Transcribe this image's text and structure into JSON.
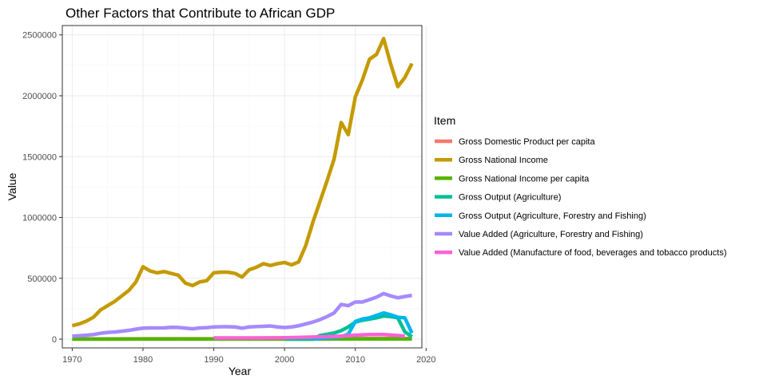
{
  "chart_data": {
    "type": "line",
    "title": "Other Factors that Contribute to African GDP",
    "xlabel": "Year",
    "ylabel": "Value",
    "xlim": [
      1968.6,
      2019.4
    ],
    "ylim": [
      -72000,
      2577000
    ],
    "x_ticks": [
      1970,
      1980,
      1990,
      2000,
      2010,
      2020
    ],
    "y_ticks": [
      0,
      500000,
      1000000,
      1500000,
      2000000,
      2500000
    ],
    "x_tick_labels": [
      "1970",
      "1980",
      "1990",
      "2000",
      "2010",
      "2020"
    ],
    "y_tick_labels": [
      "0",
      "500000",
      "1000000",
      "1500000",
      "2000000",
      "2500000"
    ],
    "grid": true,
    "legend": {
      "title": "Item",
      "position": "right",
      "entries": [
        "Gross Domestic Product per capita",
        "Gross National Income",
        "Gross National Income per capita",
        "Gross Output (Agriculture)",
        "Gross Output (Agriculture, Forestry and Fishing)",
        "Value Added (Agriculture, Forestry and Fishing)",
        "Value Added (Manufacture of food, beverages and tobacco products)"
      ]
    },
    "series": [
      {
        "name": "Gross Domestic Product per capita",
        "color": "#F8766D",
        "x": [
          1970,
          1975,
          1980,
          1985,
          1990,
          1995,
          2000,
          2005,
          2010,
          2015,
          2018
        ],
        "y": [
          1500,
          1800,
          2500,
          2200,
          2400,
          2300,
          2600,
          3200,
          4500,
          4800,
          4600
        ]
      },
      {
        "name": "Gross National Income",
        "color": "#C49A00",
        "x": [
          1970,
          1971,
          1972,
          1973,
          1974,
          1975,
          1976,
          1977,
          1978,
          1979,
          1980,
          1981,
          1982,
          1983,
          1984,
          1985,
          1986,
          1987,
          1988,
          1989,
          1990,
          1991,
          1992,
          1993,
          1994,
          1995,
          1996,
          1997,
          1998,
          1999,
          2000,
          2001,
          2002,
          2003,
          2004,
          2005,
          2006,
          2007,
          2008,
          2009,
          2010,
          2011,
          2012,
          2013,
          2014,
          2015,
          2016,
          2017,
          2018
        ],
        "y": [
          110000,
          125000,
          148000,
          180000,
          240000,
          275000,
          310000,
          355000,
          400000,
          470000,
          595000,
          560000,
          545000,
          555000,
          540000,
          525000,
          460000,
          440000,
          470000,
          480000,
          545000,
          550000,
          550000,
          540000,
          510000,
          570000,
          590000,
          620000,
          605000,
          620000,
          630000,
          610000,
          635000,
          770000,
          960000,
          1130000,
          1300000,
          1480000,
          1780000,
          1680000,
          1990000,
          2130000,
          2300000,
          2340000,
          2470000,
          2260000,
          2075000,
          2150000,
          2265000
        ]
      },
      {
        "name": "Gross National Income per capita",
        "color": "#53B400",
        "x": [
          1970,
          1975,
          1980,
          1985,
          1990,
          1995,
          2000,
          2005,
          2010,
          2015,
          2018
        ],
        "y": [
          300,
          450,
          800,
          700,
          750,
          700,
          700,
          1000,
          1700,
          1900,
          1800
        ]
      },
      {
        "name": "Gross Output (Agriculture)",
        "color": "#00C094",
        "x": [
          2000,
          2004,
          2005,
          2006,
          2007,
          2008,
          2009,
          2010,
          2011,
          2012,
          2013,
          2014,
          2015,
          2016,
          2017,
          2018
        ],
        "y": [
          0,
          0,
          30000,
          40000,
          50000,
          70000,
          100000,
          140000,
          155000,
          165000,
          175000,
          190000,
          185000,
          175000,
          60000,
          20000
        ]
      },
      {
        "name": "Gross Output (Agriculture, Forestry and Fishing)",
        "color": "#00B6EB",
        "x": [
          2004,
          2005,
          2006,
          2007,
          2008,
          2009,
          2010,
          2011,
          2012,
          2013,
          2014,
          2015,
          2016,
          2017,
          2018
        ],
        "y": [
          0,
          5000,
          10000,
          15000,
          20000,
          40000,
          145000,
          165000,
          175000,
          195000,
          215000,
          200000,
          180000,
          175000,
          50000
        ]
      },
      {
        "name": "Value Added (Agriculture, Forestry and Fishing)",
        "color": "#A58AFF",
        "x": [
          1970,
          1971,
          1972,
          1973,
          1974,
          1975,
          1976,
          1977,
          1978,
          1979,
          1980,
          1981,
          1982,
          1983,
          1984,
          1985,
          1986,
          1987,
          1988,
          1989,
          1990,
          1991,
          1992,
          1993,
          1994,
          1995,
          1996,
          1997,
          1998,
          1999,
          2000,
          2001,
          2002,
          2003,
          2004,
          2005,
          2006,
          2007,
          2008,
          2009,
          2010,
          2011,
          2012,
          2013,
          2014,
          2015,
          2016,
          2017,
          2018
        ],
        "y": [
          25000,
          28000,
          32000,
          38000,
          48000,
          55000,
          58000,
          65000,
          72000,
          82000,
          90000,
          92000,
          92000,
          93000,
          97000,
          96000,
          90000,
          85000,
          92000,
          94000,
          100000,
          102000,
          102000,
          100000,
          90000,
          100000,
          103000,
          105000,
          108000,
          100000,
          95000,
          100000,
          110000,
          125000,
          140000,
          160000,
          185000,
          215000,
          285000,
          275000,
          305000,
          305000,
          325000,
          345000,
          375000,
          355000,
          340000,
          350000,
          360000
        ]
      },
      {
        "name": "Value Added (Manufacture of food, beverages and tobacco products)",
        "color": "#FB61D7",
        "x": [
          1990,
          1992,
          1994,
          1996,
          1998,
          2000,
          2002,
          2004,
          2006,
          2008,
          2010,
          2012,
          2014,
          2016,
          2017
        ],
        "y": [
          10000,
          10000,
          10000,
          10000,
          11000,
          12000,
          14000,
          17000,
          20000,
          25000,
          32000,
          38000,
          38000,
          30000,
          25000
        ]
      }
    ]
  }
}
